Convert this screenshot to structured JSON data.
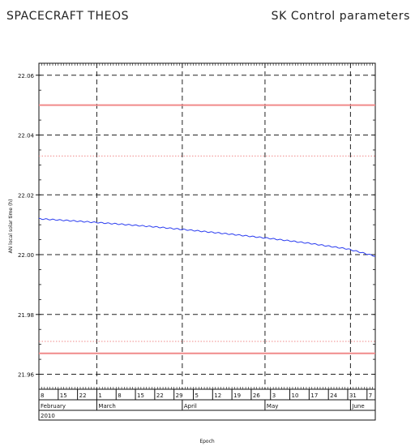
{
  "header": {
    "left": "SPACECRAFT THEOS",
    "right": "SK Control parameters"
  },
  "chart_data": {
    "type": "line",
    "ylabel": "AN local solar time (h)",
    "xlabel": "Epoch",
    "ylim": [
      21.955,
      22.064
    ],
    "x_range": [
      "2010-02-08",
      "2010-06-10"
    ],
    "y_ticks": [
      "21.96",
      "21.98",
      "22.00",
      "22.02",
      "22.04",
      "22.06"
    ],
    "grid": true,
    "day_labels": [
      {
        "date": "2010-02-08",
        "label": "8"
      },
      {
        "date": "2010-02-15",
        "label": "15"
      },
      {
        "date": "2010-02-22",
        "label": "22"
      },
      {
        "date": "2010-03-01",
        "label": "1"
      },
      {
        "date": "2010-03-08",
        "label": "8"
      },
      {
        "date": "2010-03-15",
        "label": "15"
      },
      {
        "date": "2010-03-22",
        "label": "22"
      },
      {
        "date": "2010-03-29",
        "label": "29"
      },
      {
        "date": "2010-04-05",
        "label": "5"
      },
      {
        "date": "2010-04-12",
        "label": "12"
      },
      {
        "date": "2010-04-19",
        "label": "19"
      },
      {
        "date": "2010-04-26",
        "label": "26"
      },
      {
        "date": "2010-05-03",
        "label": "3"
      },
      {
        "date": "2010-05-10",
        "label": "10"
      },
      {
        "date": "2010-05-17",
        "label": "17"
      },
      {
        "date": "2010-05-24",
        "label": "24"
      },
      {
        "date": "2010-05-31",
        "label": "31"
      },
      {
        "date": "2010-06-07",
        "label": "7"
      }
    ],
    "months": [
      {
        "date": "2010-02-08",
        "label": "February"
      },
      {
        "date": "2010-03-01",
        "label": "March"
      },
      {
        "date": "2010-04-01",
        "label": "April"
      },
      {
        "date": "2010-05-01",
        "label": "May"
      },
      {
        "date": "2010-06-01",
        "label": "June"
      }
    ],
    "year": "2010",
    "series": [
      {
        "color": "#2b3df0",
        "x": [
          "2010-02-08",
          "2010-02-22",
          "2010-03-08",
          "2010-03-22",
          "2010-04-05",
          "2010-04-19",
          "2010-05-03",
          "2010-05-17",
          "2010-05-31",
          "2010-06-10"
        ],
        "y": [
          22.012,
          22.0112,
          22.0103,
          22.0093,
          22.0081,
          22.0068,
          22.0054,
          22.0038,
          22.0019,
          21.9995
        ]
      }
    ],
    "reference_lines": [
      {
        "y": 22.05,
        "style": "solid",
        "color": "#f08a8a"
      },
      {
        "y": 22.033,
        "style": "dotted",
        "color": "#f08a8a"
      },
      {
        "y": 21.971,
        "style": "dotted",
        "color": "#f08a8a"
      },
      {
        "y": 21.967,
        "style": "solid",
        "color": "#f08a8a"
      }
    ]
  }
}
